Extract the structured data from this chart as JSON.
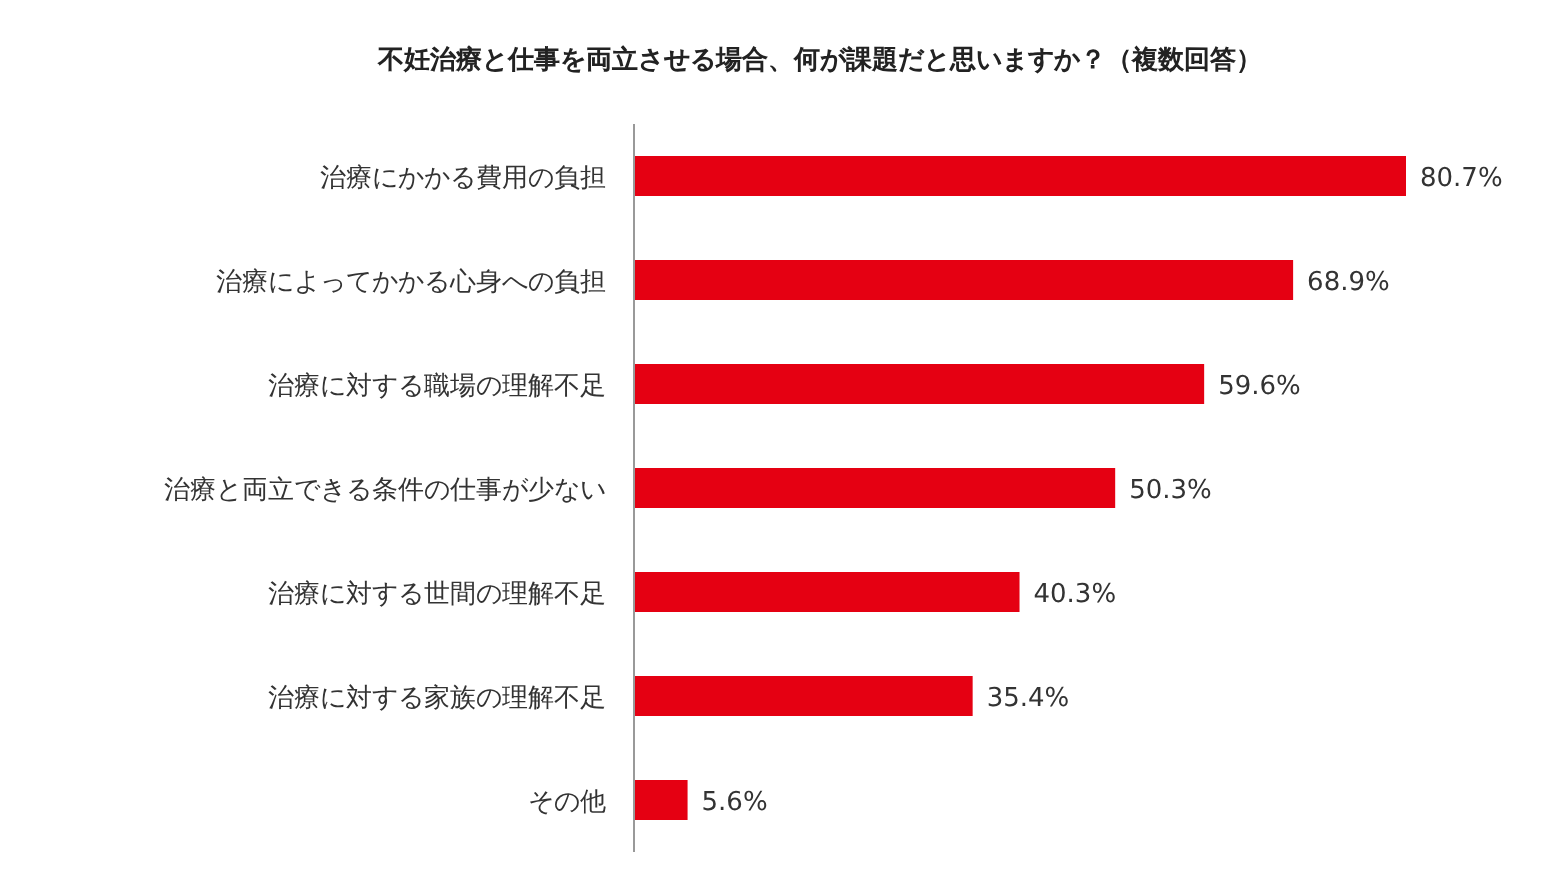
{
  "chart_data": {
    "type": "bar",
    "orientation": "horizontal",
    "title": "不妊治療と仕事を両立させる場合、何が課題だと思いますか？（複数回答）",
    "categories": [
      "治療にかかる費用の負担",
      "治療によってかかる心身への負担",
      "治療に対する職場の理解不足",
      "治療と両立できる条件の仕事が少ない",
      "治療に対する世間の理解不足",
      "治療に対する家族の理解不足",
      "その他"
    ],
    "values": [
      80.7,
      68.9,
      59.6,
      50.3,
      40.3,
      35.4,
      5.6
    ],
    "value_labels": [
      "80.7%",
      "68.9%",
      "59.6%",
      "50.3%",
      "40.3%",
      "35.4%",
      "5.6%"
    ],
    "color": "#e50012"
  }
}
